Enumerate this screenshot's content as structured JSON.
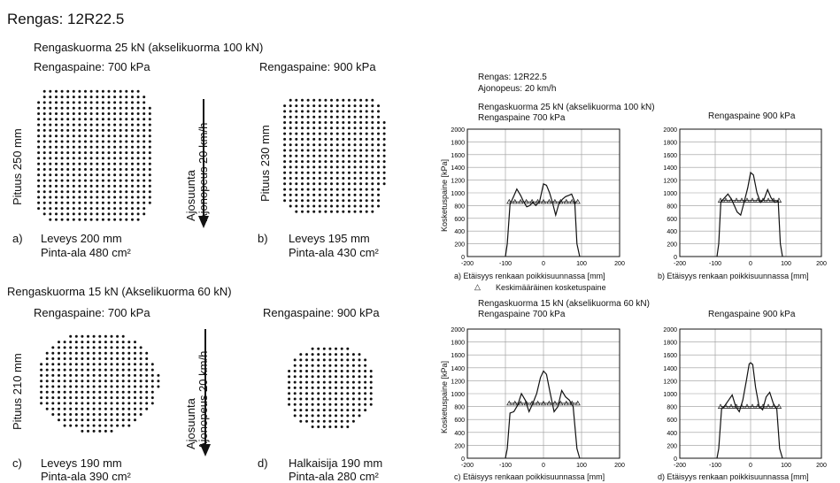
{
  "title": "Rengas: 12R22.5",
  "left": {
    "upper": {
      "heading": "Rengaskuorma 25 kN (akselikuorma 100 kN)",
      "pressure_a": "Rengaspaine: 700 kPa",
      "pressure_b": "Rengaspaine: 900 kPa",
      "length_a": "Pituus 250 mm",
      "length_b": "Pituus 230 mm",
      "dir1": "Ajosuunta",
      "dir2": "Ajonopeus 20 km/h",
      "label_a": "a)",
      "width_a": "Leveys 200 mm",
      "area_a": "Pinta-ala 480 cm²",
      "label_b": "b)",
      "width_b": "Leveys 195 mm",
      "area_b": "Pinta-ala 430 cm²"
    },
    "lower": {
      "heading": "Rengaskuorma 15 kN (Akselikuorma 60 kN)",
      "pressure_c": "Rengaspaine: 700 kPa",
      "pressure_d": "Rengaspaine: 900 kPa",
      "length_c": "Pituus 210 mm",
      "dir1": "Ajosuunta",
      "dir2": "Ajonopeus 20 km/h",
      "label_c": "c)",
      "width_c": "Leveys 190 mm",
      "area_c": "Pinta-ala 390 cm²",
      "label_d": "d)",
      "width_d": "Halkaisija 190  mm",
      "area_d": "Pinta-ala 280 cm²"
    }
  },
  "right": {
    "tire": "Rengas: 12R22.5",
    "speed": "Ajonopeus: 20 km/h",
    "upper_load": "Rengaskuorma 25 kN (akselikuorma 100 kN)",
    "upper_pressure_a": "Rengaspaine  700 kPa",
    "upper_pressure_b": "Rengaspaine 900 kPa",
    "lower_load": "Rengaskuorma 15 kN (akselikuorma 60 kN)",
    "lower_pressure_c": "Rengaspaine  700 kPa",
    "lower_pressure_d": "Rengaspaine 900 kPa",
    "legend_symbol": "△",
    "legend_text": "Keskimääräinen kosketuspaine",
    "ylabel": "Kosketuspaine [kPa]",
    "xlabel_a": "a)  Etäisyys renkaan poikkisuunnassa [mm]",
    "xlabel_b": "b)  Etäisyys renkaan poikkisuunnassa [mm]",
    "xlabel_c": "c)  Etäisyys renkaan poikkisuunnassa [mm]",
    "xlabel_d": "d)  Etäisyys renkaan poikkisuunnassa [mm]"
  },
  "chart_data": [
    {
      "type": "line",
      "panel": "a",
      "ylabel": "Kosketuspaine [kPa]",
      "xlabel": "Etäisyys renkaan poikkisuunnassa [mm]",
      "xlim": [
        -200,
        200
      ],
      "ylim": [
        0,
        2000
      ],
      "xticks": [
        -200,
        -100,
        0,
        100,
        200
      ],
      "yticks": [
        0,
        200,
        400,
        600,
        800,
        1000,
        1200,
        1400,
        1600,
        1800,
        2000
      ],
      "grid": true,
      "x": [
        -100,
        -95,
        -88,
        -78,
        -70,
        -60,
        -52,
        -44,
        -36,
        -28,
        -20,
        -10,
        0,
        8,
        16,
        24,
        32,
        40,
        50,
        58,
        66,
        74,
        82,
        88,
        95
      ],
      "y": [
        0,
        200,
        820,
        950,
        1060,
        960,
        860,
        780,
        800,
        850,
        800,
        870,
        1140,
        1120,
        1000,
        840,
        650,
        820,
        900,
        940,
        960,
        980,
        860,
        200,
        0
      ],
      "mean_x": [
        -90,
        -75,
        -60,
        -45,
        -30,
        -15,
        0,
        15,
        30,
        45,
        60,
        75,
        90
      ],
      "mean_y": [
        860,
        860,
        860,
        860,
        860,
        860,
        860,
        860,
        860,
        860,
        860,
        860,
        860
      ]
    },
    {
      "type": "line",
      "panel": "b",
      "xlim": [
        -200,
        200
      ],
      "ylim": [
        0,
        2000
      ],
      "xticks": [
        -200,
        -100,
        0,
        100,
        200
      ],
      "yticks": [
        0,
        200,
        400,
        600,
        800,
        1000,
        1200,
        1400,
        1600,
        1800,
        2000
      ],
      "grid": true,
      "x": [
        -95,
        -90,
        -84,
        -74,
        -64,
        -54,
        -46,
        -38,
        -28,
        -18,
        -8,
        0,
        8,
        18,
        28,
        38,
        48,
        58,
        68,
        78,
        84,
        90
      ],
      "y": [
        0,
        200,
        860,
        920,
        980,
        900,
        800,
        700,
        650,
        860,
        1080,
        1320,
        1280,
        1000,
        850,
        900,
        1050,
        920,
        850,
        870,
        200,
        0
      ],
      "mean_x": [
        -85,
        -70,
        -55,
        -40,
        -25,
        -10,
        5,
        20,
        35,
        50,
        65,
        80
      ],
      "mean_y": [
        880,
        880,
        880,
        880,
        880,
        880,
        880,
        880,
        880,
        880,
        880,
        880
      ]
    },
    {
      "type": "line",
      "panel": "c",
      "xlim": [
        -200,
        200
      ],
      "ylim": [
        0,
        2000
      ],
      "xticks": [
        -200,
        -100,
        0,
        100,
        200
      ],
      "yticks": [
        0,
        200,
        400,
        600,
        800,
        1000,
        1200,
        1400,
        1600,
        1800,
        2000
      ],
      "grid": true,
      "x": [
        -100,
        -95,
        -88,
        -78,
        -68,
        -58,
        -48,
        -38,
        -28,
        -18,
        -8,
        0,
        8,
        18,
        28,
        38,
        48,
        58,
        68,
        78,
        88,
        95
      ],
      "y": [
        0,
        150,
        700,
        720,
        820,
        1000,
        900,
        720,
        850,
        1000,
        1250,
        1350,
        1300,
        1000,
        720,
        800,
        1050,
        950,
        900,
        800,
        150,
        0
      ],
      "mean_x": [
        -90,
        -75,
        -60,
        -45,
        -30,
        -15,
        0,
        15,
        30,
        45,
        60,
        75,
        90
      ],
      "mean_y": [
        850,
        850,
        850,
        850,
        850,
        850,
        850,
        850,
        850,
        850,
        850,
        850,
        850
      ]
    },
    {
      "type": "line",
      "panel": "d",
      "xlim": [
        -200,
        200
      ],
      "ylim": [
        0,
        2000
      ],
      "xticks": [
        -200,
        -100,
        0,
        100,
        200
      ],
      "yticks": [
        0,
        200,
        400,
        600,
        800,
        1000,
        1200,
        1400,
        1600,
        1800,
        2000
      ],
      "grid": true,
      "x": [
        -95,
        -90,
        -82,
        -72,
        -62,
        -52,
        -42,
        -32,
        -22,
        -12,
        -4,
        0,
        6,
        14,
        24,
        34,
        44,
        54,
        64,
        74,
        82,
        90
      ],
      "y": [
        0,
        150,
        760,
        820,
        900,
        980,
        800,
        720,
        900,
        1200,
        1460,
        1480,
        1450,
        1100,
        800,
        750,
        950,
        1020,
        850,
        760,
        150,
        0
      ],
      "mean_x": [
        -85,
        -70,
        -55,
        -40,
        -25,
        -10,
        5,
        20,
        35,
        50,
        65,
        80
      ],
      "mean_y": [
        800,
        800,
        800,
        800,
        800,
        800,
        800,
        800,
        800,
        800,
        800,
        800
      ]
    }
  ]
}
